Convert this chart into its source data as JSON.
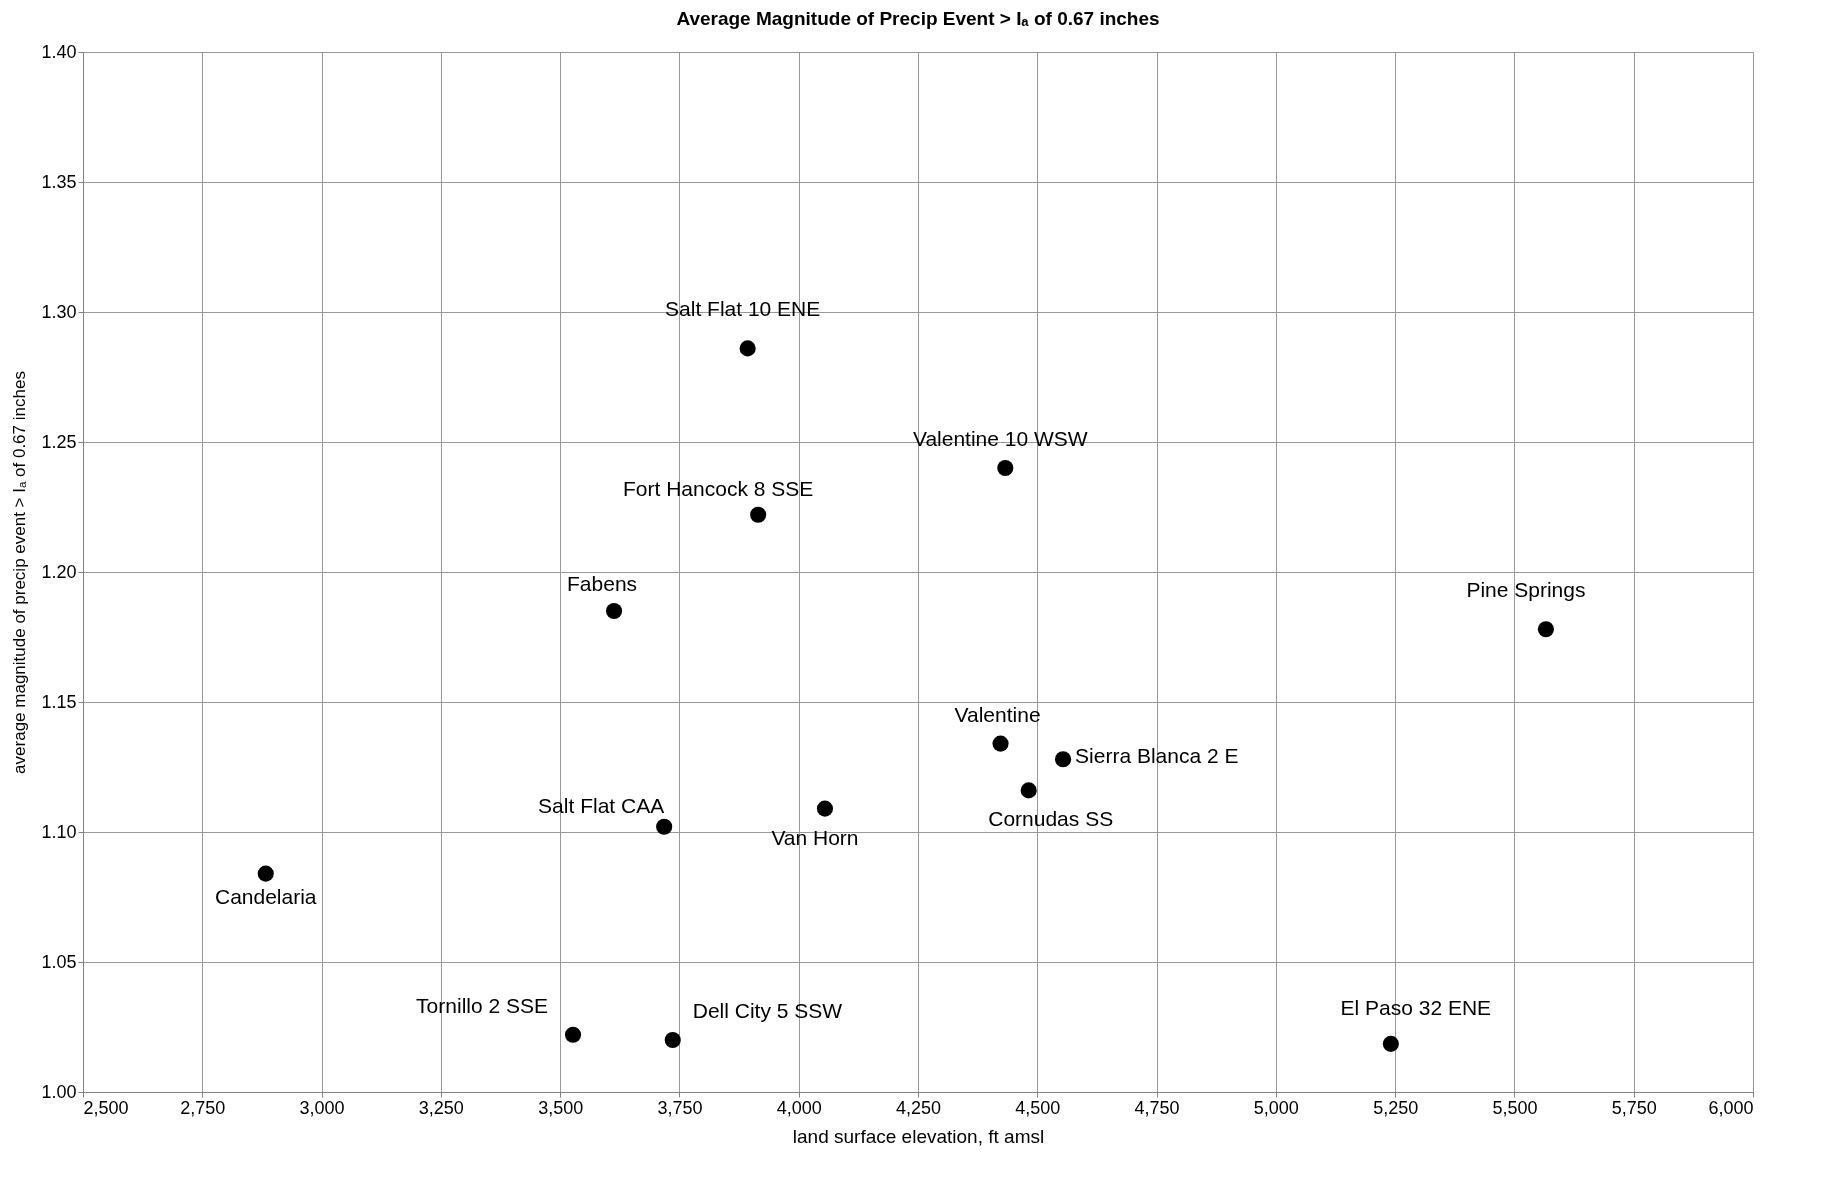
{
  "chart_data": {
    "type": "scatter",
    "title": "Average Magnitude of Precip Event > Iₐ of 0.67 inches",
    "xlabel": "land surface elevation, ft amsl",
    "ylabel": "average magnitude of precip event > Iₐ of 0.67 inches",
    "x": [
      2883,
      3527,
      3736,
      3718,
      3613,
      3893,
      3915,
      4055,
      4433,
      4423,
      4482,
      4554,
      5566,
      5241
    ],
    "series": [
      {
        "color": "#000000",
        "values": [
          1.084,
          1.022,
          1.02,
          1.102,
          1.185,
          1.286,
          1.222,
          1.109,
          1.24,
          1.134,
          1.116,
          1.128,
          1.178,
          1.0185
        ]
      }
    ],
    "annotations": [
      {
        "text": "Candelaria",
        "x": 2883,
        "y": 1.084
      },
      {
        "text": "Tornillo 2 SSE",
        "x": 3527,
        "y": 1.022
      },
      {
        "text": "Dell City 5 SSW",
        "x": 3736,
        "y": 1.02
      },
      {
        "text": "Salt Flat CAA",
        "x": 3718,
        "y": 1.102
      },
      {
        "text": "Fabens",
        "x": 3613,
        "y": 1.185
      },
      {
        "text": "Salt Flat 10 ENE",
        "x": 3893,
        "y": 1.286
      },
      {
        "text": "Fort Hancock 8 SSE",
        "x": 3915,
        "y": 1.222
      },
      {
        "text": "Van Horn",
        "x": 4055,
        "y": 1.109
      },
      {
        "text": "Valentine 10 WSW",
        "x": 4433,
        "y": 1.24
      },
      {
        "text": "Valentine",
        "x": 4423,
        "y": 1.134
      },
      {
        "text": "Cornudas SS",
        "x": 4482,
        "y": 1.116
      },
      {
        "text": "Sierra Blanca 2 E",
        "x": 4554,
        "y": 1.128
      },
      {
        "text": "Pine Springs",
        "x": 5566,
        "y": 1.178
      },
      {
        "text": "El Paso 32 ENE",
        "x": 5241,
        "y": 1.0185
      }
    ],
    "xlim": [
      2500,
      6000
    ],
    "xticks": [
      {
        "value": 2500,
        "label": "2,500"
      },
      {
        "value": 2750,
        "label": "2,750"
      },
      {
        "value": 3000,
        "label": "3,000"
      },
      {
        "value": 3250,
        "label": "3,250"
      },
      {
        "value": 3500,
        "label": "3,500"
      },
      {
        "value": 3750,
        "label": "3,750"
      },
      {
        "value": 4000,
        "label": "4,000"
      },
      {
        "value": 4250,
        "label": "4,250"
      },
      {
        "value": 4500,
        "label": "4,500"
      },
      {
        "value": 4750,
        "label": "4,750"
      },
      {
        "value": 5000,
        "label": "5,000"
      },
      {
        "value": 5250,
        "label": "5,250"
      },
      {
        "value": 5500,
        "label": "5,500"
      },
      {
        "value": 5750,
        "label": "5,750"
      },
      {
        "value": 6000,
        "label": "6,000"
      }
    ],
    "ylim": [
      1.0,
      1.4
    ],
    "yticks": [
      {
        "value": 1.0,
        "label": "1.00"
      },
      {
        "value": 1.05,
        "label": "1.05"
      },
      {
        "value": 1.1,
        "label": "1.10"
      },
      {
        "value": 1.15,
        "label": "1.15"
      },
      {
        "value": 1.2,
        "label": "1.20"
      },
      {
        "value": 1.25,
        "label": "1.25"
      },
      {
        "value": 1.3,
        "label": "1.30"
      },
      {
        "value": 1.35,
        "label": "1.35"
      },
      {
        "value": 1.4,
        "label": "1.40"
      }
    ],
    "grid": true,
    "marker": "circle"
  }
}
